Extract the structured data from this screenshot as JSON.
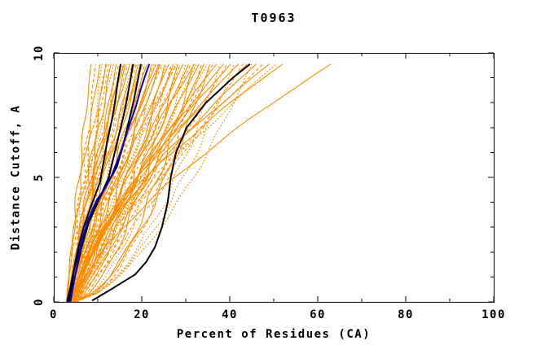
{
  "title": "T0963",
  "axes": {
    "xlabel": "Percent of Residues (CA)",
    "ylabel": "Distance Cutoff, A",
    "xlim": [
      0,
      100
    ],
    "ylim": [
      0,
      10
    ],
    "x_tick_values": [
      0,
      20,
      40,
      60,
      80,
      100
    ],
    "x_tick_labels": [
      "0",
      "20",
      "40",
      "60",
      "80",
      "100"
    ],
    "x_minor_ticks": [
      10,
      30,
      50,
      70,
      90
    ],
    "y_tick_values": [
      0,
      5,
      10
    ],
    "y_tick_labels": [
      "0",
      "5",
      "10"
    ],
    "y_minor_ticks": [
      1,
      2,
      3,
      4,
      6,
      7,
      8,
      9
    ]
  },
  "colors": {
    "ensemble_orange": "#FF8C00",
    "highlight_black": "#000000",
    "highlight_blue": "#0000E0",
    "axis": "#000000",
    "background": "#FFFFFF"
  },
  "chart_data": {
    "type": "line",
    "title": "T0963",
    "xlabel": "Percent of Residues (CA)",
    "ylabel": "Distance Cutoff, A",
    "xlim": [
      0,
      100
    ],
    "ylim": [
      0,
      10
    ],
    "grid": false,
    "legend": false,
    "curve_top_cutoff": 9.55,
    "ensemble": {
      "description": "orange model curves: percent of residues (x) under distance cutoff (y); each row = [percent_at_cutoff0, percent_at_top, shape_exponent, wiggle_amp, wiggle_phase, dash_style]",
      "color": "#FF8C00",
      "count": 72,
      "curves": [
        [
          3.0,
          8.5,
          1.1,
          0.4,
          0.5,
          0
        ],
        [
          3.4,
          9.5,
          0.95,
          0.5,
          2.1,
          1
        ],
        [
          2.9,
          10.5,
          1.2,
          0.4,
          4.0,
          0
        ],
        [
          3.6,
          11.0,
          1.05,
          0.6,
          1.2,
          2
        ],
        [
          3.1,
          11.8,
          0.9,
          0.5,
          3.3,
          0
        ],
        [
          3.8,
          12.5,
          1.15,
          0.4,
          5.1,
          1
        ],
        [
          3.2,
          13.0,
          1.0,
          0.6,
          0.8,
          0
        ],
        [
          4.0,
          13.6,
          1.25,
          0.5,
          2.6,
          2
        ],
        [
          3.3,
          14.2,
          0.92,
          0.4,
          4.4,
          0
        ],
        [
          3.7,
          14.8,
          1.12,
          0.6,
          1.6,
          1
        ],
        [
          3.0,
          15.3,
          1.02,
          0.5,
          3.8,
          0
        ],
        [
          4.1,
          15.8,
          1.22,
          0.4,
          5.6,
          2
        ],
        [
          3.4,
          16.3,
          0.94,
          0.6,
          0.3,
          0
        ],
        [
          3.9,
          16.8,
          1.08,
          0.5,
          2.9,
          1
        ],
        [
          3.1,
          17.3,
          1.18,
          0.4,
          4.7,
          0
        ],
        [
          4.2,
          17.8,
          0.88,
          0.6,
          1.9,
          2
        ],
        [
          3.5,
          18.3,
          1.06,
          0.5,
          3.5,
          0
        ],
        [
          3.0,
          18.8,
          1.16,
          0.4,
          5.3,
          1
        ],
        [
          4.3,
          19.2,
          0.85,
          0.6,
          0.6,
          0
        ],
        [
          3.6,
          19.7,
          1.04,
          0.5,
          2.3,
          2
        ],
        [
          3.2,
          20.2,
          1.14,
          0.4,
          4.1,
          0
        ],
        [
          4.4,
          20.7,
          0.8,
          0.6,
          5.9,
          1
        ],
        [
          3.7,
          21.2,
          1.02,
          0.5,
          1.0,
          0
        ],
        [
          3.3,
          21.7,
          1.12,
          0.4,
          3.0,
          2
        ],
        [
          4.5,
          22.2,
          0.75,
          0.6,
          4.9,
          0
        ],
        [
          3.8,
          22.7,
          1.0,
          0.5,
          0.2,
          1
        ],
        [
          3.4,
          23.2,
          1.1,
          0.4,
          2.0,
          0
        ],
        [
          4.6,
          23.7,
          0.7,
          0.6,
          3.9,
          2
        ],
        [
          3.9,
          24.2,
          0.98,
          0.5,
          5.7,
          0
        ],
        [
          3.5,
          24.7,
          1.08,
          0.4,
          1.4,
          1
        ],
        [
          4.7,
          25.2,
          0.65,
          0.6,
          3.2,
          0
        ],
        [
          4.0,
          25.7,
          0.96,
          0.5,
          5.0,
          2
        ],
        [
          3.6,
          26.2,
          1.06,
          0.4,
          0.9,
          0
        ],
        [
          4.8,
          26.7,
          0.62,
          0.6,
          2.7,
          1
        ],
        [
          4.1,
          27.2,
          0.94,
          0.5,
          4.5,
          0
        ],
        [
          3.7,
          27.7,
          1.04,
          0.4,
          0.1,
          2
        ],
        [
          4.9,
          28.2,
          0.6,
          0.6,
          1.8,
          0
        ],
        [
          4.2,
          28.8,
          0.92,
          0.5,
          3.6,
          1
        ],
        [
          3.8,
          29.4,
          1.02,
          0.4,
          5.4,
          0
        ],
        [
          5.0,
          30.0,
          0.58,
          0.6,
          1.1,
          2
        ],
        [
          4.3,
          30.6,
          0.9,
          0.5,
          2.8,
          0
        ],
        [
          3.9,
          31.2,
          1.0,
          0.4,
          4.6,
          1
        ],
        [
          5.1,
          31.8,
          0.56,
          0.6,
          0.4,
          0
        ],
        [
          4.4,
          32.4,
          0.88,
          0.5,
          2.2,
          2
        ],
        [
          4.0,
          33.0,
          0.98,
          0.4,
          4.0,
          0
        ],
        [
          5.2,
          33.6,
          0.55,
          0.6,
          5.8,
          1
        ],
        [
          4.5,
          34.2,
          0.86,
          0.5,
          1.5,
          0
        ],
        [
          4.1,
          34.8,
          0.96,
          0.4,
          3.4,
          2
        ],
        [
          4.6,
          35.5,
          0.6,
          0.6,
          5.2,
          0
        ],
        [
          4.2,
          36.2,
          0.94,
          0.5,
          0.7,
          1
        ],
        [
          4.7,
          37.0,
          1.3,
          0.4,
          2.5,
          0
        ],
        [
          4.3,
          37.8,
          0.55,
          0.6,
          4.3,
          2
        ],
        [
          4.8,
          38.6,
          1.35,
          0.5,
          0.0,
          0
        ],
        [
          4.4,
          39.4,
          0.92,
          0.4,
          1.7,
          1
        ],
        [
          4.9,
          40.2,
          1.4,
          0.6,
          3.7,
          0
        ],
        [
          4.5,
          41.0,
          0.58,
          0.5,
          5.5,
          2
        ],
        [
          5.0,
          42.0,
          1.45,
          0.4,
          1.3,
          0
        ],
        [
          4.6,
          43.0,
          0.9,
          0.6,
          3.1,
          1
        ],
        [
          4.2,
          44.0,
          1.5,
          0.5,
          5.0,
          0
        ],
        [
          4.7,
          45.0,
          0.62,
          0.4,
          0.5,
          2
        ],
        [
          4.3,
          46.0,
          1.42,
          0.6,
          2.4,
          0
        ],
        [
          4.8,
          47.5,
          1.3,
          0.5,
          4.2,
          1
        ],
        [
          4.4,
          49.0,
          1.55,
          0.4,
          0.2,
          0
        ],
        [
          4.9,
          50.5,
          1.35,
          0.6,
          2.0,
          2
        ],
        [
          4.5,
          52.0,
          1.6,
          0.5,
          3.8,
          0
        ],
        [
          5.0,
          63.0,
          1.45,
          0.4,
          5.6,
          0
        ],
        [
          3.0,
          12.0,
          1.3,
          0.5,
          1.0,
          1
        ],
        [
          3.5,
          16.0,
          1.35,
          0.4,
          2.9,
          0
        ],
        [
          3.2,
          20.0,
          1.28,
          0.6,
          4.8,
          2
        ],
        [
          3.8,
          24.0,
          1.26,
          0.5,
          0.6,
          0
        ],
        [
          3.3,
          28.0,
          1.24,
          0.4,
          2.2,
          1
        ],
        [
          4.0,
          32.0,
          1.22,
          0.6,
          4.4,
          0
        ]
      ]
    },
    "highlights": [
      {
        "name": "black-curve-1",
        "color": "#000000",
        "width": 2,
        "points": [
          [
            3.2,
            0
          ],
          [
            4.2,
            0.8
          ],
          [
            4.8,
            1.5
          ],
          [
            5.6,
            2.2
          ],
          [
            6.8,
            3.0
          ],
          [
            8.6,
            3.9
          ],
          [
            10.5,
            4.8
          ],
          [
            11.3,
            5.6
          ],
          [
            12.2,
            6.5
          ],
          [
            13.2,
            7.3
          ],
          [
            13.9,
            8.0
          ],
          [
            14.5,
            8.8
          ],
          [
            15.2,
            9.55
          ]
        ]
      },
      {
        "name": "black-curve-2",
        "color": "#000000",
        "width": 2,
        "points": [
          [
            3.5,
            0
          ],
          [
            4.4,
            0.7
          ],
          [
            5.3,
            1.4
          ],
          [
            6.5,
            2.3
          ],
          [
            8.0,
            3.2
          ],
          [
            10.0,
            4.0
          ],
          [
            12.5,
            5.0
          ],
          [
            13.6,
            5.8
          ],
          [
            14.8,
            6.7
          ],
          [
            15.9,
            7.5
          ],
          [
            16.8,
            8.3
          ],
          [
            17.5,
            9.0
          ],
          [
            18.0,
            9.55
          ]
        ]
      },
      {
        "name": "black-curve-3",
        "color": "#000000",
        "width": 2,
        "points": [
          [
            3.0,
            0
          ],
          [
            3.8,
            0.6
          ],
          [
            4.6,
            1.3
          ],
          [
            5.8,
            2.1
          ],
          [
            7.4,
            3.0
          ],
          [
            9.6,
            3.9
          ],
          [
            12.0,
            4.7
          ],
          [
            14.3,
            5.4
          ],
          [
            15.8,
            6.3
          ],
          [
            17.0,
            7.2
          ],
          [
            18.2,
            8.1
          ],
          [
            19.1,
            8.9
          ],
          [
            19.8,
            9.55
          ]
        ]
      },
      {
        "name": "black-curve-4",
        "color": "#000000",
        "width": 2,
        "points": [
          [
            8.7,
            0.05
          ],
          [
            13.0,
            0.5
          ],
          [
            18.5,
            1.1
          ],
          [
            21.0,
            1.6
          ],
          [
            23.0,
            2.2
          ],
          [
            24.6,
            3.0
          ],
          [
            25.9,
            4.0
          ],
          [
            26.6,
            5.0
          ],
          [
            27.8,
            6.0
          ],
          [
            30.2,
            7.0
          ],
          [
            34.6,
            8.0
          ],
          [
            40.7,
            9.0
          ],
          [
            44.6,
            9.55
          ]
        ]
      },
      {
        "name": "blue-curve",
        "color": "#0000E0",
        "width": 2,
        "points": [
          [
            3.8,
            0
          ],
          [
            4.6,
            0.8
          ],
          [
            5.4,
            1.6
          ],
          [
            6.4,
            2.5
          ],
          [
            7.8,
            3.3
          ],
          [
            9.8,
            4.1
          ],
          [
            11.8,
            4.6
          ],
          [
            13.2,
            5.1
          ],
          [
            15.2,
            6.0
          ],
          [
            17.0,
            7.0
          ],
          [
            18.6,
            7.8
          ],
          [
            19.7,
            8.5
          ],
          [
            20.8,
            9.1
          ],
          [
            21.7,
            9.55
          ]
        ]
      }
    ]
  }
}
